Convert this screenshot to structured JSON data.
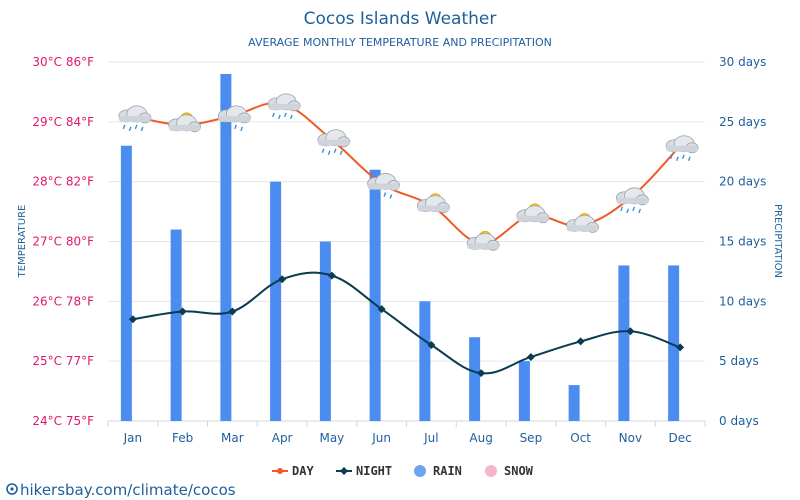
{
  "chart_data": {
    "type": "bar",
    "title": "Cocos Islands Weather",
    "subtitle": "AVERAGE MONTHLY TEMPERATURE AND PRECIPITATION",
    "categories": [
      "Jan",
      "Feb",
      "Mar",
      "Apr",
      "May",
      "Jun",
      "Jul",
      "Aug",
      "Sep",
      "Oct",
      "Nov",
      "Dec"
    ],
    "y_left": {
      "label": "TEMPERATURE",
      "unit": "°C",
      "ylim": [
        24,
        30
      ],
      "ticks": [
        "24°C 75°F",
        "25°C 77°F",
        "26°C 78°F",
        "27°C 80°F",
        "28°C 82°F",
        "29°C 84°F",
        "30°C 86°F"
      ]
    },
    "y_right": {
      "label": "PRECIPITATION",
      "unit": "days",
      "ylim": [
        0,
        30
      ],
      "ticks": [
        "0 days",
        "5 days",
        "10 days",
        "15 days",
        "20 days",
        "25 days",
        "30 days"
      ]
    },
    "series": [
      {
        "name": "DAY",
        "kind": "line",
        "axis": "left",
        "color": "#f05a28",
        "values": [
          29.1,
          28.95,
          29.1,
          29.3,
          28.7,
          27.97,
          27.6,
          26.97,
          27.43,
          27.27,
          27.73,
          28.6
        ]
      },
      {
        "name": "NIGHT",
        "kind": "line",
        "axis": "left",
        "color": "#0a3b4f",
        "values": [
          25.7,
          25.83,
          25.83,
          26.37,
          26.43,
          25.87,
          25.27,
          24.8,
          25.07,
          25.33,
          25.5,
          25.23
        ]
      },
      {
        "name": "RAIN",
        "kind": "bar",
        "axis": "right",
        "color": "#4a8cf0",
        "values": [
          23,
          16,
          29,
          20,
          15,
          21,
          10,
          7,
          5,
          3,
          13,
          13
        ]
      },
      {
        "name": "SNOW",
        "kind": "bar",
        "axis": "right",
        "color": "#f7b6c8",
        "values": [
          0,
          0,
          0,
          0,
          0,
          0,
          0,
          0,
          0,
          0,
          0,
          0
        ]
      }
    ],
    "weather_icons": [
      "rain-cloud-icon",
      "sun-cloud-icon",
      "rain-cloud-icon",
      "rain-cloud-icon",
      "rain-cloud-icon",
      "rain-cloud-icon",
      "sun-cloud-icon",
      "sun-cloud-icon",
      "sun-cloud-icon",
      "sun-cloud-icon",
      "rain-cloud-icon",
      "rain-cloud-icon"
    ],
    "grid": true,
    "legend": {
      "placement": "bottom",
      "items": [
        {
          "label": "DAY",
          "color": "#f05a28"
        },
        {
          "label": "NIGHT",
          "color": "#0a3b4f"
        },
        {
          "label": "RAIN",
          "color": "#6fa3f0"
        },
        {
          "label": "SNOW",
          "color": "#f7b6c8"
        }
      ]
    }
  },
  "watermark": "hikersbay.com/climate/cocos",
  "colors": {
    "title": "#1f5f9c",
    "left_axis": "#e3176b",
    "right_axis": "#1f5f9c",
    "grid": "#e6e6e6"
  }
}
